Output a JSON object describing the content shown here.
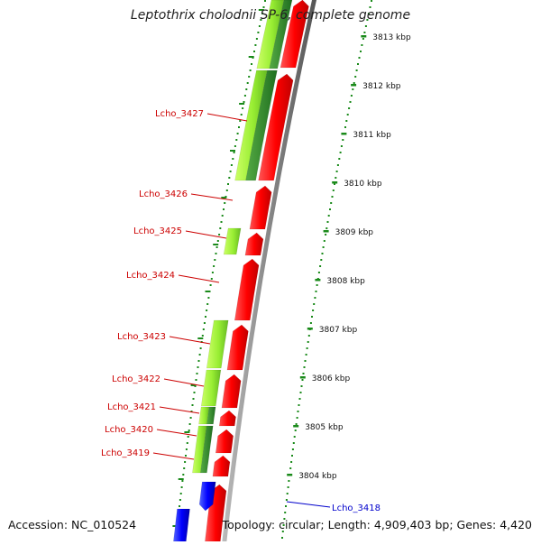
{
  "title": "Leptothrix cholodnii SP-6, complete genome",
  "footer": {
    "accession": "Accession: NC_010524",
    "topology": "Topology: circular; Length: 4,909,403 bp; Genes: 4,420"
  },
  "scale_ticks": [
    "3813 kbp",
    "3812 kbp",
    "3811 kbp",
    "3810 kbp",
    "3809 kbp",
    "3808 kbp",
    "3807 kbp",
    "3806 kbp",
    "3805 kbp",
    "3804 kbp"
  ],
  "gene_labels": [
    {
      "name": "Lcho_3427",
      "color": "#cc0000"
    },
    {
      "name": "Lcho_3426",
      "color": "#cc0000"
    },
    {
      "name": "Lcho_3425",
      "color": "#cc0000"
    },
    {
      "name": "Lcho_3424",
      "color": "#cc0000"
    },
    {
      "name": "Lcho_3423",
      "color": "#cc0000"
    },
    {
      "name": "Lcho_3422",
      "color": "#cc0000"
    },
    {
      "name": "Lcho_3421",
      "color": "#cc0000"
    },
    {
      "name": "Lcho_3420",
      "color": "#cc0000"
    },
    {
      "name": "Lcho_3419",
      "color": "#cc0000"
    },
    {
      "name": "Lcho_3418",
      "color": "#0000cc"
    }
  ],
  "colors": {
    "forward_cds": "#ff0000",
    "reverse_cds": "#0000ff",
    "feature_light": "#99ee33",
    "feature_dark": "#228822",
    "backbone": "#8a8a8a",
    "ruler": "#1a8a1a"
  }
}
